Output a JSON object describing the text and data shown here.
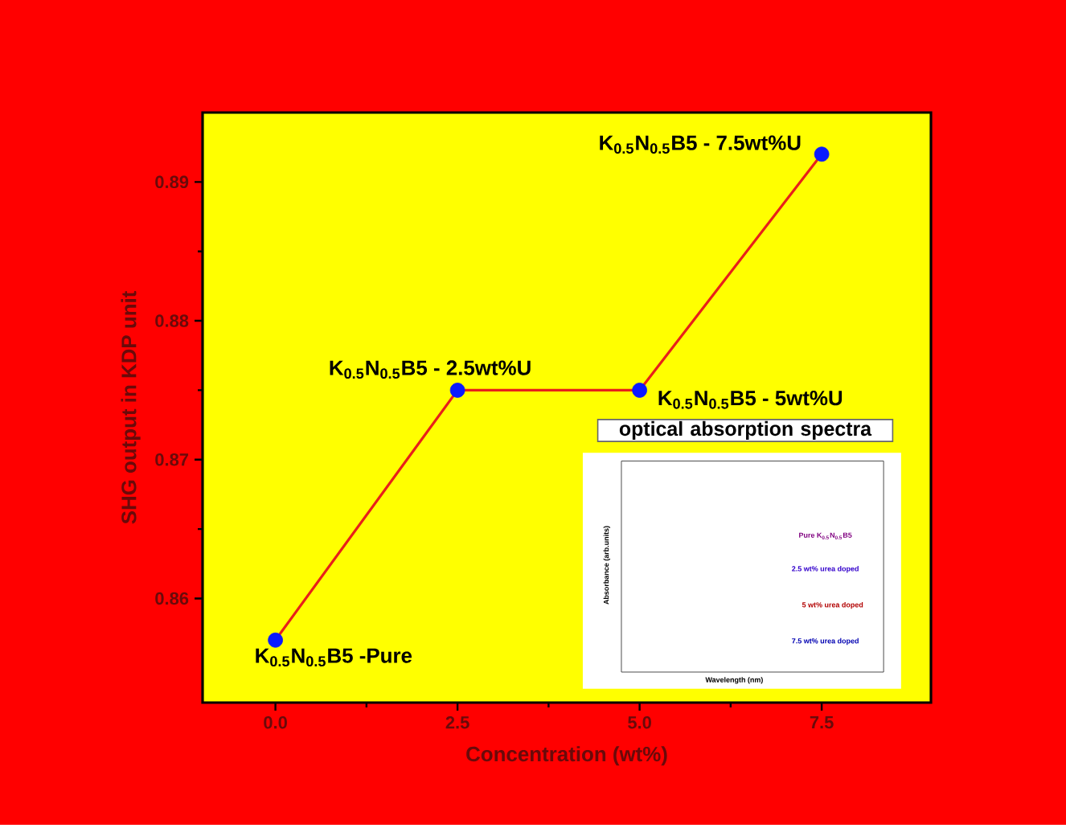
{
  "chart_data": {
    "type": "line",
    "xlabel": "Concentration (wt%)",
    "ylabel": "SHG output in KDP unit",
    "x": [
      0,
      2.5,
      5,
      7.5
    ],
    "series": [
      {
        "color": "#e8201a",
        "colors": [
          "#0a1aff",
          "#0a1aff",
          "#0a1aff",
          "#0a1aff"
        ],
        "values": [
          0.857,
          0.875,
          0.875,
          0.892
        ]
      }
    ],
    "marker": "circle",
    "line_style": "solid",
    "xlim": [
      -1,
      9
    ],
    "ylim": [
      0.8525,
      0.895
    ],
    "xticks": [
      {
        "value": 0,
        "label": "0.0"
      },
      {
        "value": 2.5,
        "label": "2.5"
      },
      {
        "value": 5,
        "label": "5.0"
      },
      {
        "value": 7.5,
        "label": "7.5"
      }
    ],
    "yticks": [
      0.86,
      0.87,
      0.88,
      0.89
    ],
    "annotations": [
      {
        "text": "K$_{0.5}$N$_{0.5}$B5 -Pure",
        "x": 0,
        "y": 0.857
      },
      {
        "text": "K$_{0.5}$N$_{0.5}$B5 - 2.5wt%U",
        "x": 2.5,
        "y": 0.875
      },
      {
        "text": "K$_{0.5}$N$_{0.5}$B5 - 5wt%U",
        "x": 5,
        "y": 0.875
      },
      {
        "text": "K$_{0.5}$N$_{0.5}$B5 - 7.5wt%U",
        "x": 7.5,
        "y": 0.892
      },
      "optical absorption spectra",
      "Pure K$_{0.5}$N$_{0.5}$B5",
      "2.5 wt% urea doped",
      "5 wt% urea doped",
      "7.5 wt% urea doped",
      "Absorbance (arb.units)",
      "Wavelength (nm)"
    ]
  }
}
